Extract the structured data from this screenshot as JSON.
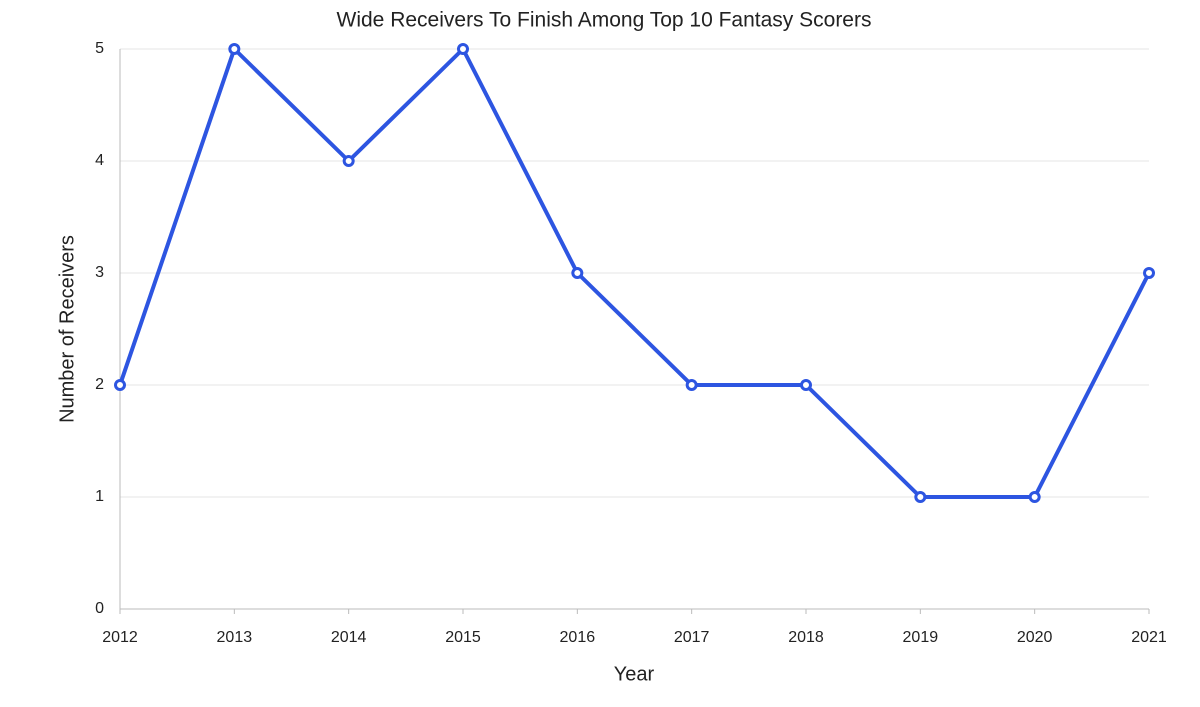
{
  "chart_data": {
    "type": "line",
    "title": "Wide Receivers To Finish Among Top 10 Fantasy Scorers",
    "x_label": "Year",
    "y_label": "Number of Receivers",
    "x": [
      2012,
      2013,
      2014,
      2015,
      2016,
      2017,
      2018,
      2019,
      2020,
      2021
    ],
    "series": [
      {
        "name": "Number of Receivers",
        "color": "#2d55e1",
        "values": [
          2,
          5,
          4,
          5,
          3,
          2,
          2,
          1,
          1,
          3
        ]
      }
    ],
    "xlim": [
      2012,
      2021
    ],
    "xticks": [
      2012,
      2013,
      2014,
      2015,
      2016,
      2017,
      2018,
      2019,
      2020,
      2021
    ],
    "ylim": [
      0,
      5
    ],
    "yticks": [
      0,
      1,
      2,
      3,
      4,
      5
    ],
    "grid": true,
    "legend": false
  }
}
